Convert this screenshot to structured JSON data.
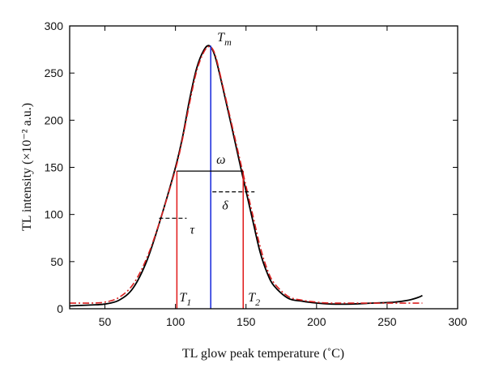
{
  "chart_data": {
    "type": "line",
    "xlabel": "TL glow peak temperature (˚C)",
    "ylabel": "TL intensity (×10⁻² a.u.)",
    "xlim": [
      25,
      300
    ],
    "ylim": [
      0,
      300
    ],
    "x_ticks": [
      50,
      100,
      150,
      200,
      250,
      300
    ],
    "y_ticks": [
      0,
      50,
      100,
      150,
      200,
      250,
      300
    ],
    "grid": false,
    "series": [
      {
        "style": "solid",
        "color": "#000000",
        "x": [
          25,
          40,
          50,
          60,
          70,
          80,
          90,
          100,
          105,
          110,
          115,
          120,
          124,
          128,
          133,
          140,
          148,
          155,
          160,
          165,
          170,
          180,
          190,
          200,
          210,
          225,
          240,
          255,
          265,
          272,
          275
        ],
        "y": [
          3,
          4,
          5,
          9,
          22,
          52,
          98,
          150,
          182,
          222,
          255,
          274,
          279,
          268,
          238,
          192,
          138,
          92,
          60,
          38,
          24,
          11,
          8,
          6,
          5,
          5,
          6,
          7,
          9,
          12,
          14
        ]
      },
      {
        "style": "dash-dot",
        "color": "#d92020",
        "x": [
          25,
          40,
          50,
          60,
          70,
          80,
          90,
          100,
          105,
          110,
          115,
          120,
          124,
          128,
          133,
          140,
          148,
          155,
          160,
          165,
          170,
          180,
          190,
          200,
          210,
          230,
          250,
          275
        ],
        "y": [
          6,
          6,
          7,
          12,
          26,
          55,
          98,
          148,
          180,
          218,
          252,
          272,
          278,
          270,
          240,
          195,
          143,
          98,
          66,
          42,
          27,
          13,
          9,
          7,
          6,
          6,
          6,
          6
        ]
      }
    ],
    "annotations": {
      "Tm": {
        "label": "T",
        "sub": "m",
        "x": 125,
        "y": 279
      },
      "T1": {
        "label": "T",
        "sub": "1",
        "x": 101
      },
      "T2": {
        "label": "T",
        "sub": "2",
        "x": 148
      },
      "omega": {
        "label": "ω",
        "y": 146
      },
      "delta": {
        "label": "δ",
        "y": 124
      },
      "tau": {
        "label": "τ",
        "y": 96
      }
    }
  }
}
